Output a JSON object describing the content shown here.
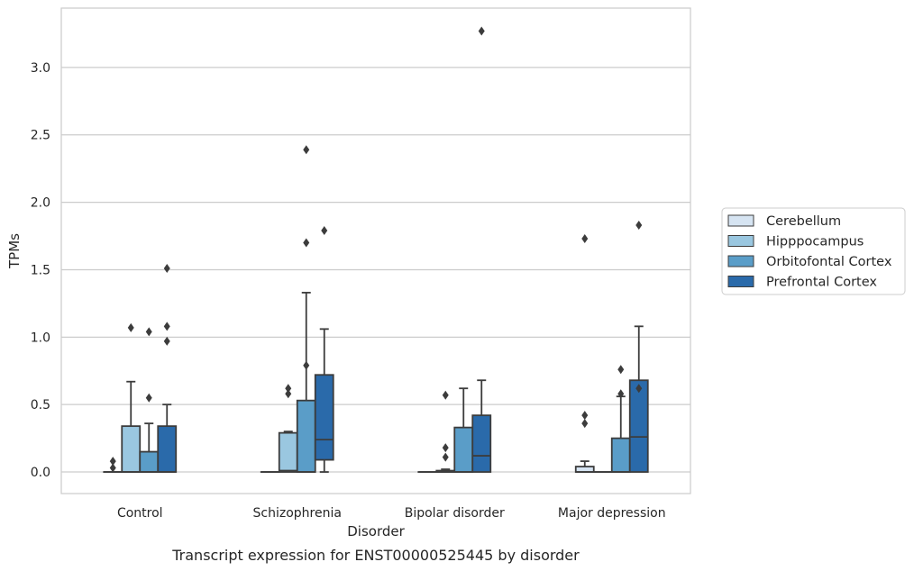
{
  "chart_data": {
    "type": "box",
    "caption": "Transcript expression for ENST00000525445 by disorder",
    "xlabel": "Disorder",
    "ylabel": "TPMs",
    "ylim": [
      -0.16,
      3.44
    ],
    "yticks": [
      "0.0",
      "0.5",
      "1.0",
      "1.5",
      "2.0",
      "2.5",
      "3.0"
    ],
    "grid": "horizontal",
    "legend_position": "right",
    "categories": [
      "Control",
      "Schizophrenia",
      "Bipolar disorder",
      "Major depression"
    ],
    "series": [
      {
        "name": "Cerebellum",
        "color": "#d6e4f2",
        "boxes": [
          {
            "q1": 0.0,
            "median": 0.0,
            "q3": 0.0,
            "whisker_low": 0.0,
            "whisker_high": 0.0,
            "outliers": [
              0.03,
              0.08
            ]
          },
          {
            "q1": 0.0,
            "median": 0.0,
            "q3": 0.0,
            "whisker_low": 0.0,
            "whisker_high": 0.0,
            "outliers": []
          },
          {
            "q1": 0.0,
            "median": 0.0,
            "q3": 0.0,
            "whisker_low": 0.0,
            "whisker_high": 0.0,
            "outliers": []
          },
          {
            "q1": 0.0,
            "median": 0.0,
            "q3": 0.04,
            "whisker_low": 0.0,
            "whisker_high": 0.08,
            "outliers": [
              0.36,
              0.42,
              1.73
            ]
          }
        ]
      },
      {
        "name": "Hipppocampus",
        "color": "#9ac7e0",
        "boxes": [
          {
            "q1": 0.0,
            "median": 0.0,
            "q3": 0.34,
            "whisker_low": 0.0,
            "whisker_high": 0.67,
            "outliers": [
              1.07
            ]
          },
          {
            "q1": 0.0,
            "median": 0.01,
            "q3": 0.29,
            "whisker_low": 0.0,
            "whisker_high": 0.3,
            "outliers": [
              0.58,
              0.62
            ]
          },
          {
            "q1": 0.0,
            "median": 0.0,
            "q3": 0.01,
            "whisker_low": 0.0,
            "whisker_high": 0.02,
            "outliers": [
              0.11,
              0.18,
              0.57
            ]
          },
          {
            "q1": 0.0,
            "median": 0.0,
            "q3": 0.0,
            "whisker_low": 0.0,
            "whisker_high": 0.0,
            "outliers": []
          }
        ]
      },
      {
        "name": "Orbitofontal Cortex",
        "color": "#5a9dc8",
        "boxes": [
          {
            "q1": 0.0,
            "median": 0.0,
            "q3": 0.15,
            "whisker_low": 0.0,
            "whisker_high": 0.36,
            "outliers": [
              0.55,
              1.04
            ]
          },
          {
            "q1": 0.0,
            "median": 0.0,
            "q3": 0.53,
            "whisker_low": 0.0,
            "whisker_high": 1.33,
            "outliers": [
              0.79,
              1.7,
              2.39
            ]
          },
          {
            "q1": 0.0,
            "median": 0.0,
            "q3": 0.33,
            "whisker_low": 0.0,
            "whisker_high": 0.62,
            "outliers": []
          },
          {
            "q1": 0.0,
            "median": 0.0,
            "q3": 0.25,
            "whisker_low": 0.0,
            "whisker_high": 0.56,
            "outliers": [
              0.58,
              0.76
            ]
          }
        ]
      },
      {
        "name": "Prefrontal Cortex",
        "color": "#2a6aaa",
        "boxes": [
          {
            "q1": 0.0,
            "median": 0.0,
            "q3": 0.34,
            "whisker_low": 0.0,
            "whisker_high": 0.5,
            "outliers": [
              0.97,
              1.08,
              1.51
            ]
          },
          {
            "q1": 0.09,
            "median": 0.24,
            "q3": 0.72,
            "whisker_low": 0.0,
            "whisker_high": 1.06,
            "outliers": [
              1.79
            ]
          },
          {
            "q1": 0.0,
            "median": 0.12,
            "q3": 0.42,
            "whisker_low": 0.0,
            "whisker_high": 0.68,
            "outliers": [
              3.27
            ]
          },
          {
            "q1": 0.0,
            "median": 0.26,
            "q3": 0.68,
            "whisker_low": 0.0,
            "whisker_high": 1.08,
            "outliers": [
              0.62,
              1.83
            ]
          }
        ]
      }
    ]
  }
}
